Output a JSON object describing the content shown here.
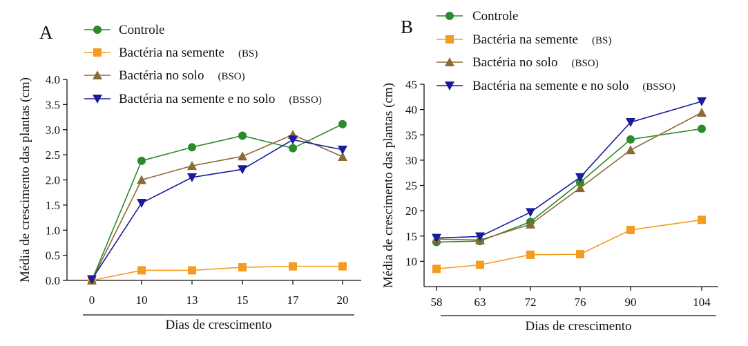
{
  "chart_data": [
    {
      "type": "line",
      "panel_label": "A",
      "categories": [
        "0",
        "10",
        "13",
        "15",
        "17",
        "20"
      ],
      "xlabel": "Dias de crescimento",
      "ylabel": "Média de crescimento das plantas (cm)",
      "ylim": [
        0,
        4
      ],
      "yticks": [
        "0.0",
        "0.5",
        "1.0",
        "1.5",
        "2.0",
        "2.5",
        "3.0",
        "3.5",
        "4.0"
      ],
      "grid": false,
      "legend_position": "top",
      "series": [
        {
          "name": "Controle",
          "abbr": "",
          "marker": "circle",
          "color": "#2b8a2b",
          "values": [
            0.0,
            2.38,
            2.65,
            2.88,
            2.63,
            3.11
          ]
        },
        {
          "name": "Bactéria na semente",
          "abbr": "(BS)",
          "marker": "square",
          "color": "#f39c1f",
          "values": [
            0.0,
            0.2,
            0.2,
            0.26,
            0.28,
            0.28
          ]
        },
        {
          "name": "Bactéria no solo",
          "abbr": "(BSO)",
          "marker": "triangle-up",
          "color": "#8b6b35",
          "values": [
            0.0,
            2.0,
            2.28,
            2.47,
            2.9,
            2.46
          ]
        },
        {
          "name": "Bactéria na semente e no solo",
          "abbr": "(BSSO)",
          "marker": "triangle-down",
          "color": "#1a1a9a",
          "values": [
            0.02,
            1.54,
            2.05,
            2.21,
            2.8,
            2.6
          ]
        }
      ]
    },
    {
      "type": "line",
      "panel_label": "B",
      "categories": [
        "58",
        "63",
        "72",
        "76",
        "90",
        "104"
      ],
      "xlabel": "Dias de crescimento",
      "ylabel": "Média de crescimento das plantas (cm)",
      "ylim": [
        5,
        45
      ],
      "yticks": [
        "10",
        "15",
        "20",
        "25",
        "30",
        "35",
        "40",
        "45"
      ],
      "grid": false,
      "legend_position": "top",
      "series": [
        {
          "name": "Controle",
          "abbr": "",
          "marker": "circle",
          "color": "#2b8a2b",
          "values": [
            13.8,
            14.0,
            17.8,
            25.6,
            34.1,
            36.2
          ]
        },
        {
          "name": "Bactéria na semente",
          "abbr": "(BS)",
          "marker": "square",
          "color": "#f39c1f",
          "values": [
            8.5,
            9.3,
            11.3,
            11.4,
            16.2,
            18.2
          ]
        },
        {
          "name": "Bactéria no solo",
          "abbr": "(BSO)",
          "marker": "triangle-up",
          "color": "#8b6b35",
          "values": [
            14.4,
            14.2,
            17.3,
            24.5,
            32.0,
            39.4
          ]
        },
        {
          "name": "Bactéria na semente e no solo",
          "abbr": "(BSSO)",
          "marker": "triangle-down",
          "color": "#1a1a9a",
          "values": [
            14.6,
            14.9,
            19.7,
            26.6,
            37.5,
            41.6
          ]
        }
      ]
    }
  ]
}
